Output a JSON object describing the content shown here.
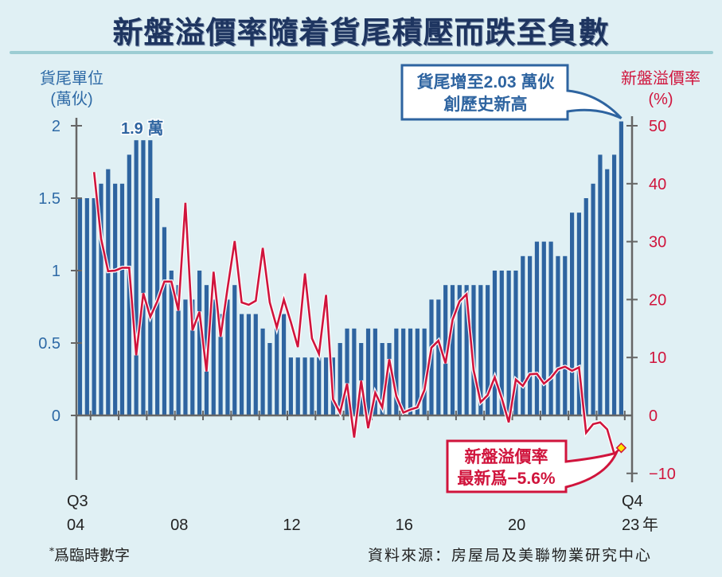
{
  "title": "新盤溢價率隨着貨尾積壓而跌至負數",
  "left_axis_title_line1": "貨尾單位",
  "left_axis_title_line2": "(萬伙)",
  "right_axis_title_line1": "新盤溢價率",
  "right_axis_title_line2": "(%)",
  "footnote_mark": "*",
  "footnote": "爲臨時數字",
  "source": "資料來源：房屋局及美聯物業研究中心",
  "colors": {
    "bar": "#2e64a0",
    "line": "#d0143c",
    "left_axis_text": "#2e6aa6",
    "right_axis_text": "#d0143c",
    "background": "#e0f0f4",
    "marker_fill": "#ffe600"
  },
  "chart_data": {
    "type": "bar+line",
    "title": "新盤溢價率隨着貨尾積壓而跌至負數",
    "x_start": "Q3 2004",
    "x_end": "Q4 2023",
    "frequency": "quarterly",
    "x_tick_labels": [
      {
        "label": "04",
        "top": "Q3",
        "index": 0
      },
      {
        "label": "08",
        "index": 14
      },
      {
        "label": "12",
        "index": 30
      },
      {
        "label": "16",
        "index": 46
      },
      {
        "label": "20",
        "index": 62
      },
      {
        "label": "23",
        "top": "Q4",
        "suffix": "年",
        "index": 77
      }
    ],
    "left_axis": {
      "label": "貨尾單位 (萬伙)",
      "range": [
        -0.4,
        2.1
      ],
      "ticks": [
        "0",
        "0.5",
        "1",
        "1.5",
        "2"
      ],
      "tick_values": [
        0,
        0.5,
        1,
        1.5,
        2
      ]
    },
    "right_axis": {
      "label": "新盤溢價率 (%)",
      "range": [
        -11,
        52
      ],
      "ticks": [
        "−10",
        "0",
        "10",
        "20",
        "30",
        "40",
        "50"
      ],
      "tick_values": [
        -10,
        0,
        10,
        20,
        30,
        40,
        50
      ]
    },
    "series": [
      {
        "name": "貨尾單位 (萬伙)",
        "type": "bar",
        "axis": "left",
        "values": [
          1.5,
          1.5,
          1.5,
          1.6,
          1.7,
          1.6,
          1.6,
          1.8,
          1.9,
          1.9,
          1.9,
          1.5,
          1.3,
          1.0,
          0.9,
          0.8,
          0.8,
          1.0,
          0.9,
          0.8,
          0.7,
          0.8,
          0.9,
          0.7,
          0.7,
          0.7,
          0.6,
          0.5,
          0.6,
          0.7,
          0.4,
          0.4,
          0.4,
          0.4,
          0.4,
          0.4,
          0.4,
          0.5,
          0.6,
          0.6,
          0.5,
          0.6,
          0.6,
          0.5,
          0.5,
          0.6,
          0.6,
          0.6,
          0.6,
          0.6,
          0.8,
          0.8,
          0.9,
          0.9,
          0.9,
          0.9,
          0.9,
          0.9,
          0.9,
          1.0,
          1.0,
          1.0,
          1.0,
          1.1,
          1.1,
          1.2,
          1.2,
          1.2,
          1.1,
          1.1,
          1.4,
          1.4,
          1.5,
          1.6,
          1.8,
          1.7,
          1.8,
          2.03
        ]
      },
      {
        "name": "新盤溢價率 (%)",
        "type": "line",
        "axis": "right",
        "start_index": 2,
        "values": [
          42.0,
          30.5,
          24.9,
          25.0,
          25.5,
          25.5,
          10.4,
          21.1,
          17.0,
          19.7,
          23.1,
          23.1,
          18.1,
          36.7,
          14.7,
          17.9,
          7.6,
          24.8,
          13.6,
          22.0,
          30.1,
          19.5,
          19.1,
          19.8,
          28.9,
          19.5,
          15.2,
          20.0,
          16.1,
          11.8,
          24.5,
          13.3,
          10.6,
          20.8,
          2.8,
          0.5,
          5.5,
          -3.8,
          6.0,
          -2.2,
          3.9,
          1.4,
          9.7,
          3.3,
          0.5,
          1.0,
          1.4,
          4.4,
          11.7,
          12.9,
          9.0,
          16.5,
          19.7,
          20.9,
          7.8,
          2.3,
          3.5,
          6.6,
          3.0,
          -1.2,
          6.2,
          5.1,
          7.1,
          7.2,
          5.5,
          6.5,
          8.0,
          8.4,
          7.7,
          8.3,
          -3.0,
          -1.5,
          -1.2,
          -2.4,
          -6.6,
          -5.6
        ]
      }
    ],
    "annotations": [
      {
        "text": "1.9 萬",
        "series": "貨尾單位 (萬伙)",
        "index": 9
      },
      {
        "line1": "貨尾增至2.03 萬伙",
        "line2": "創歷史新高",
        "series": "貨尾單位 (萬伙)",
        "index": 77
      },
      {
        "line1": "新盤溢價率",
        "line2": "最新爲−5.6%",
        "series": "新盤溢價率 (%)",
        "index": 77
      }
    ],
    "grid": false,
    "legend": "none"
  }
}
